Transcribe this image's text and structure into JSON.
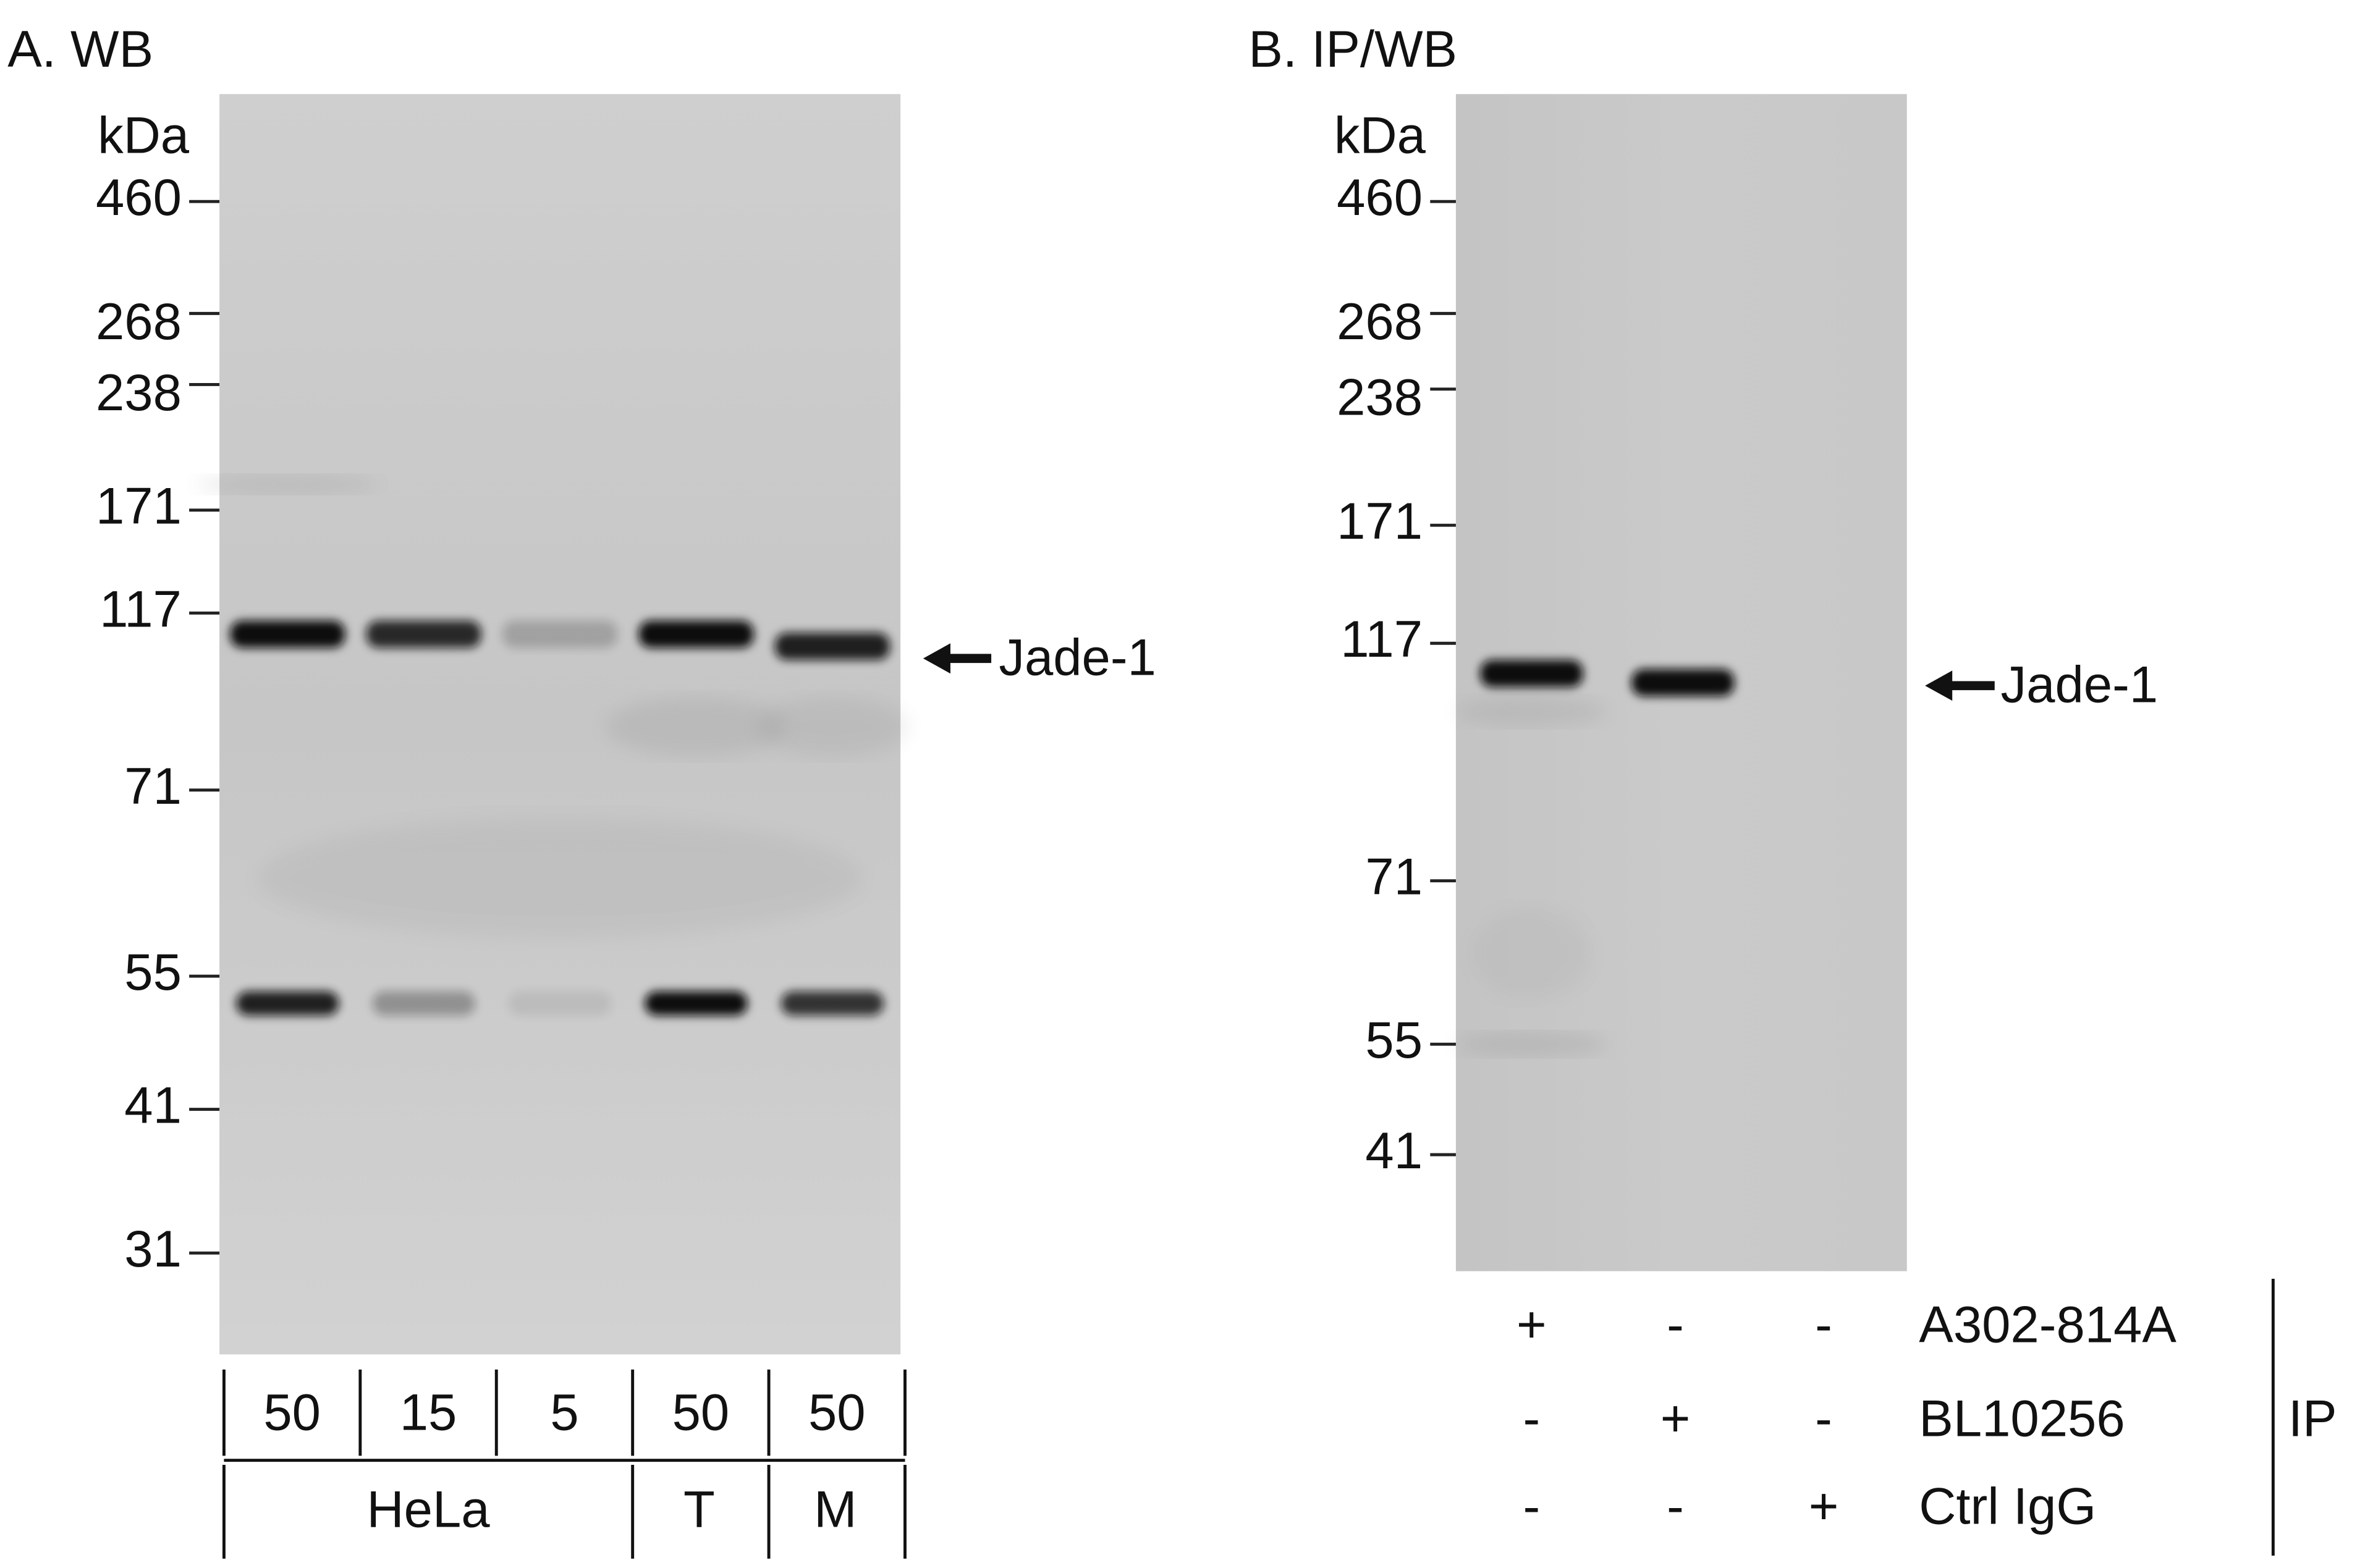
{
  "panels": [
    {
      "title": "A. WB",
      "unit": "kDa",
      "markers": [
        "460",
        "268",
        "238",
        "171",
        "117",
        "71",
        "55",
        "41",
        "31"
      ],
      "band_label": "Jade-1",
      "lanes": [
        "50",
        "15",
        "5",
        "50",
        "50"
      ],
      "groups": [
        "HeLa",
        "T",
        "M"
      ]
    },
    {
      "title": "B. IP/WB",
      "unit": "kDa",
      "markers": [
        "460",
        "268",
        "238",
        "171",
        "117",
        "71",
        "55",
        "41"
      ],
      "band_label": "Jade-1",
      "rows": [
        {
          "label": "A302-814A",
          "signs": [
            "+",
            "-",
            "-"
          ]
        },
        {
          "label": "BL10256",
          "signs": [
            "-",
            "+",
            "-"
          ]
        },
        {
          "label": "Ctrl IgG",
          "signs": [
            "-",
            "-",
            "+"
          ]
        }
      ],
      "ip_label": "IP"
    }
  ]
}
